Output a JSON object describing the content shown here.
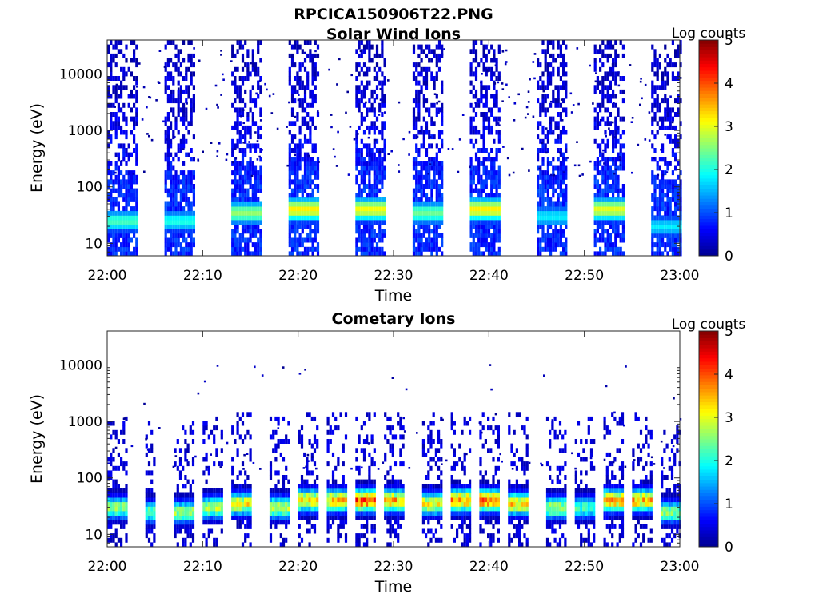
{
  "figure": {
    "title": "RPCICA150906T22.PNG"
  },
  "colors": {
    "colormap": [
      "#00008f",
      "#0000ff",
      "#0080ff",
      "#00ffff",
      "#80ff80",
      "#ffff00",
      "#ff8000",
      "#ff0000",
      "#800000"
    ],
    "axis": "#262626",
    "background": "#ffffff"
  },
  "chart_data": [
    {
      "type": "heatmap",
      "title": "Solar Wind Ions",
      "xlabel": "Time",
      "ylabel": "Energy (eV)",
      "y_scale": "log",
      "xlim": [
        "22:00",
        "23:00"
      ],
      "ylim": [
        6,
        40000
      ],
      "x_ticks": [
        "22:00",
        "22:10",
        "22:20",
        "22:30",
        "22:40",
        "22:50",
        "23:00"
      ],
      "y_ticks": [
        "10",
        "100",
        "1000",
        "10000"
      ],
      "grid": false,
      "colorbar": {
        "label": "Log counts",
        "range": [
          0,
          5
        ],
        "ticks": [
          "0",
          "1",
          "2",
          "3",
          "4",
          "5"
        ]
      },
      "sweeps": [
        {
          "start": "22:00",
          "end": "22:03",
          "peak_energy_ev": 25,
          "peak_log_counts": 2.2
        },
        {
          "start": "22:06",
          "end": "22:09",
          "peak_energy_ev": 25,
          "peak_log_counts": 2.0
        },
        {
          "start": "22:13",
          "end": "22:16",
          "peak_energy_ev": 35,
          "peak_log_counts": 2.6
        },
        {
          "start": "22:19",
          "end": "22:22",
          "peak_energy_ev": 40,
          "peak_log_counts": 3.2
        },
        {
          "start": "22:26",
          "end": "22:29",
          "peak_energy_ev": 40,
          "peak_log_counts": 3.1
        },
        {
          "start": "22:32",
          "end": "22:35",
          "peak_energy_ev": 35,
          "peak_log_counts": 2.4
        },
        {
          "start": "22:38",
          "end": "22:41",
          "peak_energy_ev": 40,
          "peak_log_counts": 3.2
        },
        {
          "start": "22:45",
          "end": "22:48",
          "peak_energy_ev": 30,
          "peak_log_counts": 1.8
        },
        {
          "start": "22:51",
          "end": "22:54",
          "peak_energy_ev": 40,
          "peak_log_counts": 3.0
        },
        {
          "start": "22:57",
          "end": "23:00",
          "peak_energy_ev": 20,
          "peak_log_counts": 1.8
        }
      ]
    },
    {
      "type": "heatmap",
      "title": "Cometary Ions",
      "xlabel": "Time",
      "ylabel": "Energy (eV)",
      "y_scale": "log",
      "xlim": [
        "22:00",
        "23:00"
      ],
      "ylim": [
        6,
        40000
      ],
      "x_ticks": [
        "22:00",
        "22:10",
        "22:20",
        "22:30",
        "22:40",
        "22:50",
        "23:00"
      ],
      "y_ticks": [
        "10",
        "100",
        "1000",
        "10000"
      ],
      "grid": false,
      "colorbar": {
        "label": "Log counts",
        "range": [
          0,
          5
        ],
        "ticks": [
          "0",
          "1",
          "2",
          "3",
          "4",
          "5"
        ]
      },
      "sweeps": [
        {
          "start": "22:00",
          "end": "22:02",
          "peak_energy_ev": 30,
          "peak_log_counts": 2.8
        },
        {
          "start": "22:04",
          "end": "22:05",
          "peak_energy_ev": 25,
          "peak_log_counts": 2.6
        },
        {
          "start": "22:07",
          "end": "22:09",
          "peak_energy_ev": 25,
          "peak_log_counts": 2.9
        },
        {
          "start": "22:10",
          "end": "22:12",
          "peak_energy_ev": 30,
          "peak_log_counts": 3.0
        },
        {
          "start": "22:13",
          "end": "22:15",
          "peak_energy_ev": 35,
          "peak_log_counts": 3.4
        },
        {
          "start": "22:17",
          "end": "22:19",
          "peak_energy_ev": 30,
          "peak_log_counts": 3.2
        },
        {
          "start": "22:20",
          "end": "22:22",
          "peak_energy_ev": 40,
          "peak_log_counts": 3.6
        },
        {
          "start": "22:23",
          "end": "22:25",
          "peak_energy_ev": 40,
          "peak_log_counts": 3.7
        },
        {
          "start": "22:26",
          "end": "22:28",
          "peak_energy_ev": 40,
          "peak_log_counts": 4.4
        },
        {
          "start": "22:29",
          "end": "22:31",
          "peak_energy_ev": 40,
          "peak_log_counts": 3.8
        },
        {
          "start": "22:33",
          "end": "22:35",
          "peak_energy_ev": 35,
          "peak_log_counts": 3.4
        },
        {
          "start": "22:36",
          "end": "22:38",
          "peak_energy_ev": 40,
          "peak_log_counts": 4.0
        },
        {
          "start": "22:39",
          "end": "22:41",
          "peak_energy_ev": 40,
          "peak_log_counts": 4.2
        },
        {
          "start": "22:42",
          "end": "22:44",
          "peak_energy_ev": 35,
          "peak_log_counts": 3.6
        },
        {
          "start": "22:46",
          "end": "22:48",
          "peak_energy_ev": 30,
          "peak_log_counts": 3.0
        },
        {
          "start": "22:49",
          "end": "22:51",
          "peak_energy_ev": 30,
          "peak_log_counts": 2.4
        },
        {
          "start": "22:52",
          "end": "22:54",
          "peak_energy_ev": 40,
          "peak_log_counts": 3.8
        },
        {
          "start": "22:55",
          "end": "22:57",
          "peak_energy_ev": 40,
          "peak_log_counts": 3.8
        },
        {
          "start": "22:58",
          "end": "23:00",
          "peak_energy_ev": 25,
          "peak_log_counts": 2.8
        }
      ]
    }
  ]
}
